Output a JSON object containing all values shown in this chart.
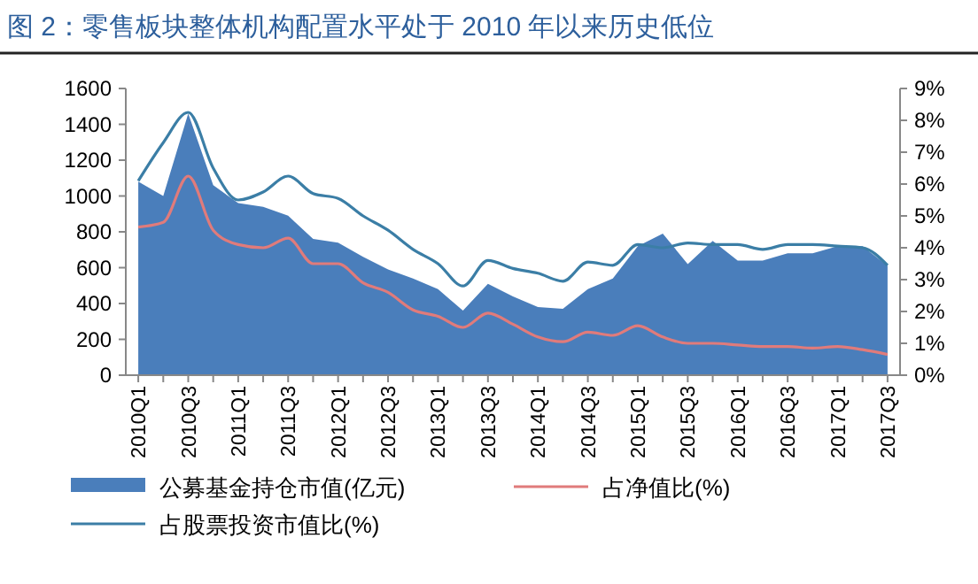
{
  "chart_data": {
    "type": "area",
    "title": "图 2：零售板块整体机构配置水平处于 2010 年以来历史低位",
    "categories": [
      "2010Q1",
      null,
      "2010Q3",
      null,
      "2011Q1",
      null,
      "2011Q3",
      null,
      "2012Q1",
      null,
      "2012Q3",
      null,
      "2013Q1",
      null,
      "2013Q3",
      null,
      "2014Q1",
      null,
      "2014Q3",
      null,
      "2015Q1",
      null,
      "2015Q3",
      null,
      "2016Q1",
      null,
      "2016Q3",
      null,
      "2017Q1",
      null,
      "2017Q3"
    ],
    "series": [
      {
        "name": "公募基金持仓市值(亿元)",
        "color": "#4a7ebb",
        "values": [
          1080,
          1000,
          1460,
          1060,
          960,
          940,
          890,
          760,
          740,
          660,
          590,
          540,
          480,
          360,
          510,
          440,
          380,
          370,
          480,
          540,
          720,
          790,
          620,
          750,
          640,
          640,
          680,
          680,
          720,
          720,
          610
        ]
      },
      {
        "name": "占净值比(%)",
        "type": "line",
        "axis": "y2",
        "color": "#e07b7b",
        "values": [
          4.65,
          4.8,
          6.25,
          4.55,
          4.1,
          4.0,
          4.3,
          3.5,
          3.5,
          2.9,
          2.6,
          2.05,
          1.85,
          1.5,
          1.95,
          1.6,
          1.2,
          1.05,
          1.35,
          1.25,
          1.55,
          1.2,
          1.0,
          1.0,
          0.95,
          0.9,
          0.9,
          0.85,
          0.9,
          0.8,
          0.65
        ]
      },
      {
        "name": "占股票投资市值比(%)",
        "type": "line",
        "axis": "y2",
        "color": "#3b7ea6",
        "values": [
          6.1,
          7.3,
          8.25,
          6.5,
          5.5,
          5.75,
          6.25,
          5.7,
          5.55,
          5.0,
          4.55,
          3.95,
          3.5,
          2.8,
          3.6,
          3.35,
          3.2,
          2.95,
          3.55,
          3.45,
          4.1,
          4.0,
          4.15,
          4.1,
          4.1,
          3.95,
          4.1,
          4.1,
          4.05,
          4.0,
          3.45
        ]
      }
    ],
    "ylim": [
      0,
      1600
    ],
    "yticks": [
      0,
      200,
      400,
      600,
      800,
      1000,
      1200,
      1400,
      1600
    ],
    "y2lim": [
      0,
      9
    ],
    "y2ticks": [
      {
        "value": 0,
        "label": "0%"
      },
      {
        "value": 1,
        "label": "1%"
      },
      {
        "value": 2,
        "label": "2%"
      },
      {
        "value": 3,
        "label": "3%"
      },
      {
        "value": 4,
        "label": "4%"
      },
      {
        "value": 5,
        "label": "5%"
      },
      {
        "value": 6,
        "label": "6%"
      },
      {
        "value": 7,
        "label": "7%"
      },
      {
        "value": 8,
        "label": "8%"
      },
      {
        "value": 9,
        "label": "9%"
      }
    ],
    "legend": "bottom",
    "grid": false
  }
}
